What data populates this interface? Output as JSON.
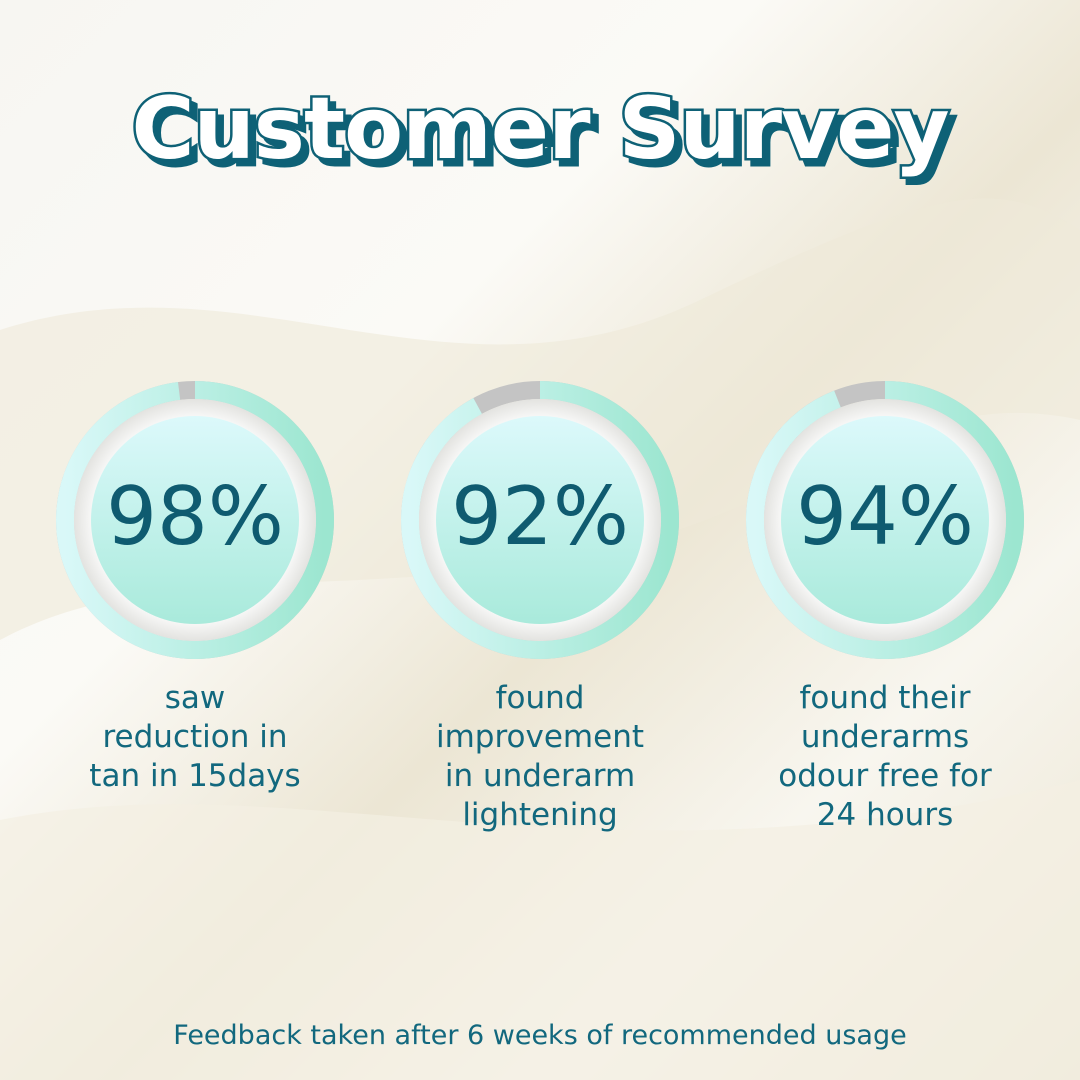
{
  "title": "Customer Survey",
  "stats": [
    {
      "value": 98,
      "value_label": "98%",
      "lines": [
        "saw",
        "reduction in",
        "tan in 15days"
      ]
    },
    {
      "value": 92,
      "value_label": "92%",
      "lines": [
        "found",
        "improvement",
        "in underarm",
        "lightening"
      ]
    },
    {
      "value": 94,
      "value_label": "94%",
      "lines": [
        "found their",
        "underarms",
        "odour free for",
        "24 hours"
      ]
    }
  ],
  "footnote": "Feedback taken after 6 weeks of recommended usage"
}
